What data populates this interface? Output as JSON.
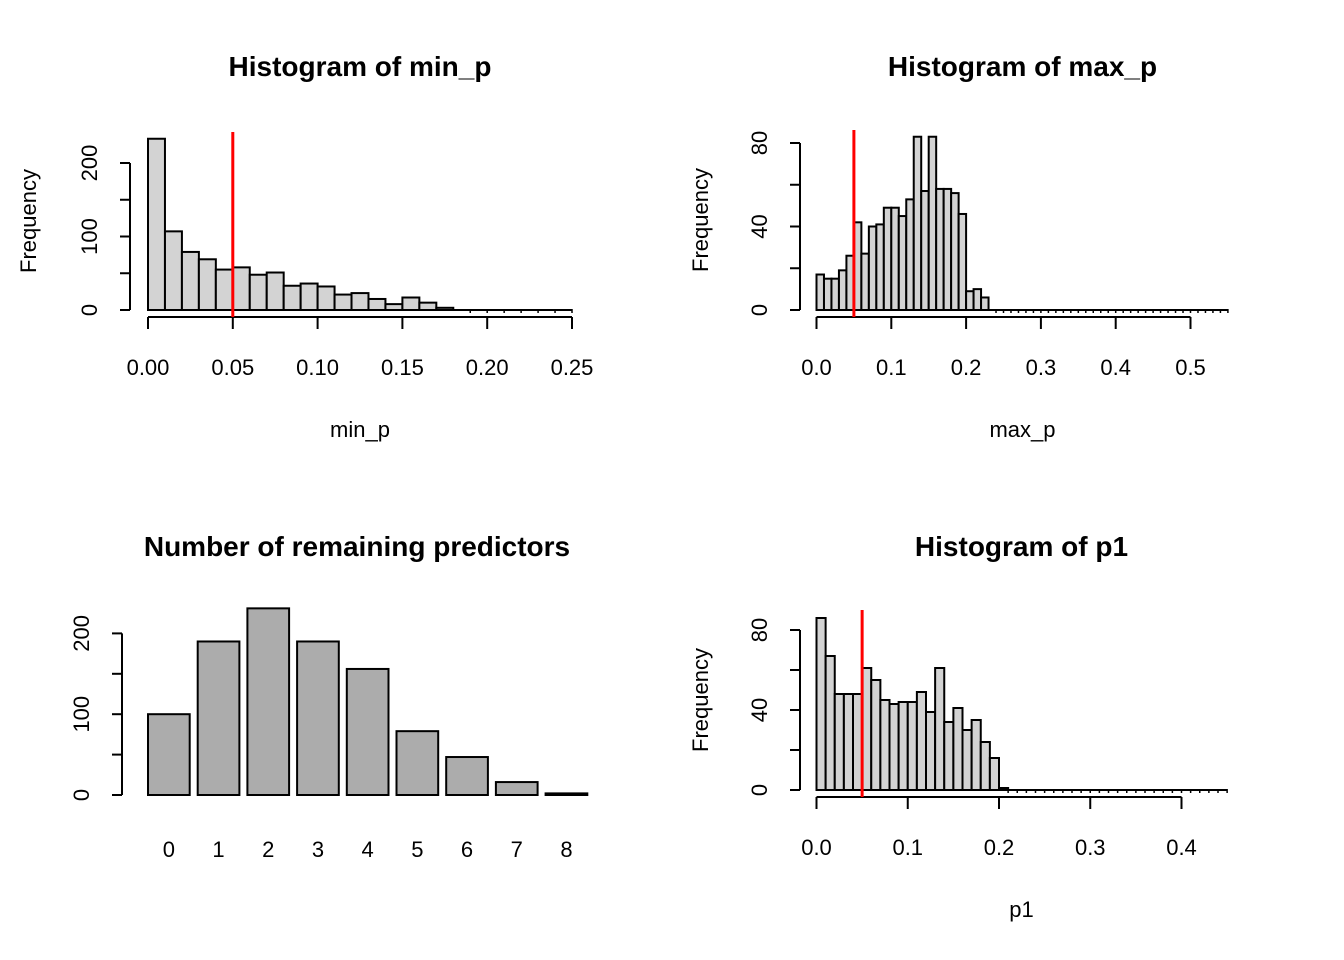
{
  "figure_background": "#FFFFFF",
  "chart_data": [
    {
      "type": "histogram",
      "title": "Histogram of min_p",
      "xlabel": "min_p",
      "ylabel": "Frequency",
      "bar_fill": "#D3D3D3",
      "bar_border": "#000000",
      "vline_x": 0.05,
      "vline_color": "#FF0000",
      "bin_start": 0.0,
      "bin_width": 0.01,
      "counts": [
        233,
        107,
        79,
        69,
        55,
        58,
        48,
        51,
        33,
        36,
        32,
        21,
        23,
        15,
        8,
        17,
        10,
        3,
        0,
        0,
        0,
        0,
        0,
        0,
        0
      ],
      "xlim": [
        0.0,
        0.25
      ],
      "ylim": [
        0,
        200
      ],
      "x_tick_values": [
        0.0,
        0.05,
        0.1,
        0.15,
        0.2,
        0.25
      ],
      "x_ticks": [
        "0.00",
        "0.05",
        "0.10",
        "0.15",
        "0.20",
        "0.25"
      ],
      "y_tick_values": [
        0,
        50,
        100,
        150,
        200
      ],
      "y_tick_labels": [
        "0",
        "",
        "100",
        "",
        "200"
      ],
      "grid": "off",
      "legend": "none"
    },
    {
      "type": "histogram",
      "title": "Histogram of max_p",
      "xlabel": "max_p",
      "ylabel": "Frequency",
      "bar_fill": "#D3D3D3",
      "bar_border": "#000000",
      "vline_x": 0.05,
      "vline_color": "#FF0000",
      "bin_start": 0.0,
      "bin_width": 0.01,
      "counts": [
        17,
        15,
        15,
        19,
        26,
        42,
        27,
        40,
        41,
        49,
        49,
        45,
        53,
        83,
        57,
        83,
        58,
        58,
        56,
        46,
        9,
        10,
        6,
        0,
        0,
        0,
        0,
        0,
        0,
        0,
        0,
        0,
        0,
        0,
        0,
        0,
        0,
        0,
        0,
        0,
        0,
        0,
        0,
        0,
        0,
        0,
        0,
        0,
        0,
        0,
        0,
        0,
        0,
        0,
        0
      ],
      "xlim": [
        0.0,
        0.5
      ],
      "ylim": [
        0,
        80
      ],
      "x_tick_values": [
        0.0,
        0.1,
        0.2,
        0.3,
        0.4,
        0.5
      ],
      "x_ticks": [
        "0.0",
        "0.1",
        "0.2",
        "0.3",
        "0.4",
        "0.5"
      ],
      "y_tick_values": [
        0,
        20,
        40,
        60,
        80
      ],
      "y_tick_labels": [
        "0",
        "",
        "40",
        "",
        "80"
      ],
      "grid": "off",
      "legend": "none"
    },
    {
      "type": "bar",
      "title": "Number of remaining predictors",
      "xlabel": "",
      "ylabel": "",
      "bar_fill": "#ACACAC",
      "bar_border": "#000000",
      "categories": [
        "0",
        "1",
        "2",
        "3",
        "4",
        "5",
        "6",
        "7",
        "8"
      ],
      "values": [
        100,
        190,
        231,
        190,
        156,
        79,
        47,
        16,
        2
      ],
      "ylim": [
        0,
        200
      ],
      "y_tick_values": [
        0,
        50,
        100,
        150,
        200
      ],
      "y_tick_labels": [
        "0",
        "",
        "100",
        "",
        "200"
      ],
      "grid": "off",
      "legend": "none"
    },
    {
      "type": "histogram",
      "title": "Histogram of p1",
      "xlabel": "p1",
      "ylabel": "Frequency",
      "bar_fill": "#D3D3D3",
      "bar_border": "#000000",
      "vline_x": 0.05,
      "vline_color": "#FF0000",
      "bin_start": 0.0,
      "bin_width": 0.01,
      "counts": [
        86,
        67,
        48,
        48,
        48,
        61,
        55,
        45,
        43,
        44,
        44,
        49,
        39,
        61,
        34,
        41,
        30,
        35,
        24,
        16,
        1,
        0,
        0,
        0,
        0,
        0,
        0,
        0,
        0,
        0,
        0,
        0,
        0,
        0,
        0,
        0,
        0,
        0,
        0,
        0,
        0,
        0,
        0,
        0,
        0
      ],
      "xlim": [
        0.0,
        0.4
      ],
      "ylim": [
        0,
        80
      ],
      "x_tick_values": [
        0.0,
        0.1,
        0.2,
        0.3,
        0.4
      ],
      "x_ticks": [
        "0.0",
        "0.1",
        "0.2",
        "0.3",
        "0.4"
      ],
      "y_tick_values": [
        0,
        20,
        40,
        60,
        80
      ],
      "y_tick_labels": [
        "0",
        "",
        "40",
        "",
        "80"
      ],
      "grid": "off",
      "legend": "none"
    }
  ]
}
